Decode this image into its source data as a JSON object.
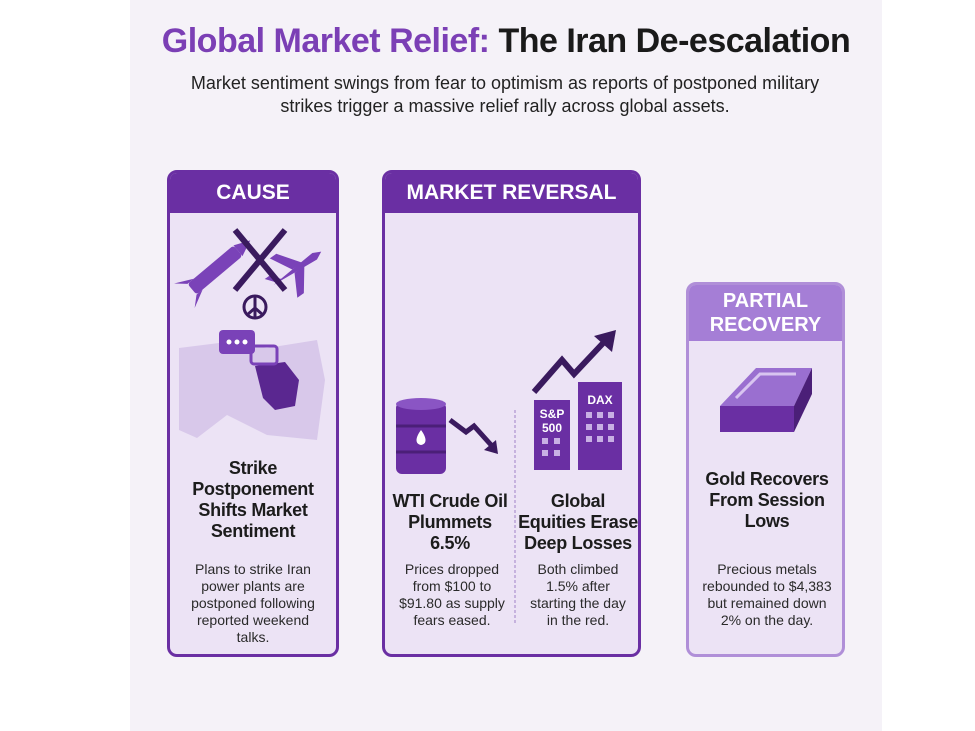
{
  "header": {
    "title_part1": "Global Market Relief:",
    "title_part2": "The Iran De-escalation",
    "subtitle": "Market sentiment swings from fear to optimism as reports of postponed military strikes trigger a massive relief rally across global assets."
  },
  "cards": [
    {
      "label": "CAUSE",
      "heading": "Strike Postponement Shifts Market Sentiment",
      "body": "Plans to strike Iran power plants are postponed following reported weekend talks."
    },
    {
      "label": "MARKET REVERSAL",
      "columns": [
        {
          "heading": "WTI Crude Oil Plummets 6.5%",
          "body": "Prices dropped from $100 to $91.80 as supply fears eased."
        },
        {
          "heading": "Global Equities Erase Deep Losses",
          "body": "Both climbed 1.5% after starting the day in the red.",
          "icon_labels": [
            "S&P",
            "500",
            "DAX"
          ]
        }
      ]
    },
    {
      "label": "PARTIAL RECOVERY",
      "heading": "Gold Recovers From Session Lows",
      "body": "Precious metals rebounded to $4,383 but remained down 2% on the day."
    }
  ]
}
